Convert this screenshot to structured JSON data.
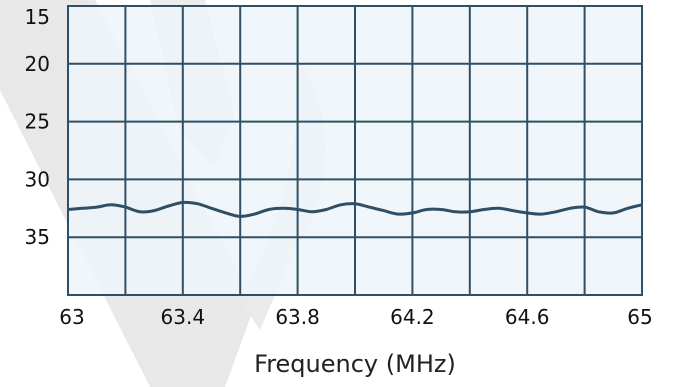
{
  "chart_data": {
    "type": "line",
    "title": "",
    "xlabel": "Frequency (MHz)",
    "ylabel": "",
    "xlim": [
      63,
      65
    ],
    "ylim": [
      15,
      40
    ],
    "y_inverted": true,
    "grid": true,
    "x_ticks": [
      "63",
      "63.4",
      "63.8",
      "64.2",
      "64.6",
      "65"
    ],
    "y_ticks": [
      "15",
      "20",
      "25",
      "30",
      "35"
    ],
    "x_tick_values": [
      63,
      63.4,
      63.8,
      64.2,
      64.6,
      65
    ],
    "y_tick_values": [
      15,
      20,
      25,
      30,
      35
    ],
    "series": [
      {
        "color": "#2f4f66",
        "x": [
          63.0,
          63.05,
          63.1,
          63.15,
          63.2,
          63.25,
          63.3,
          63.35,
          63.4,
          63.45,
          63.5,
          63.55,
          63.6,
          63.65,
          63.7,
          63.75,
          63.8,
          63.85,
          63.9,
          63.95,
          64.0,
          64.05,
          64.1,
          64.15,
          64.2,
          64.25,
          64.3,
          64.35,
          64.4,
          64.45,
          64.5,
          64.55,
          64.6,
          64.65,
          64.7,
          64.75,
          64.8,
          64.85,
          64.9,
          64.95,
          65.0
        ],
        "y": [
          32.6,
          32.5,
          32.4,
          32.2,
          32.4,
          32.8,
          32.7,
          32.3,
          32.0,
          32.1,
          32.5,
          32.9,
          33.2,
          33.0,
          32.6,
          32.5,
          32.6,
          32.8,
          32.6,
          32.2,
          32.1,
          32.4,
          32.7,
          33.0,
          32.9,
          32.6,
          32.6,
          32.8,
          32.8,
          32.6,
          32.5,
          32.7,
          32.9,
          33.0,
          32.8,
          32.5,
          32.4,
          32.8,
          32.9,
          32.5,
          32.2
        ]
      }
    ]
  },
  "colors": {
    "plot_background": "#eff5f9",
    "grid_line": "#2f4f66",
    "series_line": "#2f4f66",
    "watermark": "#cfcfcf"
  }
}
